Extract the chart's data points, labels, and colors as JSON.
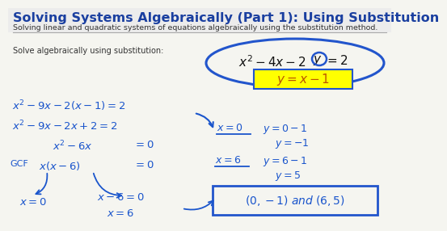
{
  "bg_color": "#e8e8e8",
  "content_bg": "#f5f5f0",
  "title": "Solving Systems Algebraically (Part 1): Using Substitution",
  "subtitle": "Solving linear and quadratic systems of equations algebraically using the substitution method.",
  "title_color": "#1a3fa0",
  "title_fontsize": 11.5,
  "subtitle_fontsize": 6.8,
  "subtitle_color": "#333333",
  "hand_color": "#1a55cc",
  "yellow_bg": "#ffff00",
  "blue_ellipse_color": "#2255cc",
  "answer_text": "(0,-1) and (6,5)"
}
